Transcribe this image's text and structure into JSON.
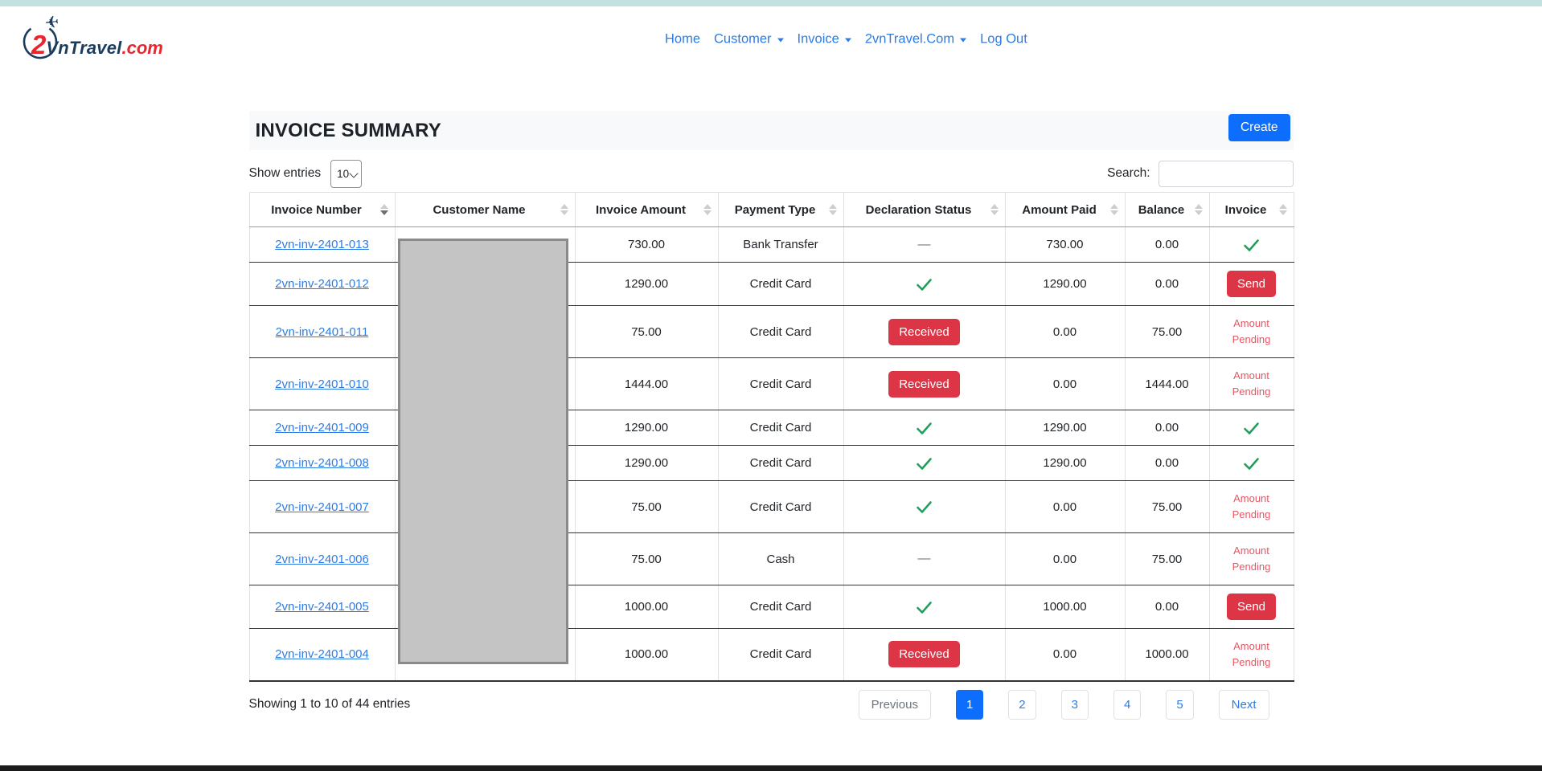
{
  "brand": {
    "digit": "2",
    "name": "VnTravel",
    "suffix": ".com"
  },
  "nav": {
    "items": [
      {
        "label": "Home",
        "has_dropdown": false
      },
      {
        "label": "Customer",
        "has_dropdown": true
      },
      {
        "label": "Invoice",
        "has_dropdown": true
      },
      {
        "label": "2vnTravel.Com",
        "has_dropdown": true
      },
      {
        "label": "Log Out",
        "has_dropdown": false
      }
    ]
  },
  "page": {
    "title": "INVOICE SUMMARY",
    "create_label": "Create"
  },
  "controls": {
    "show_entries_label": "Show entries",
    "page_size": "10",
    "search_label": "Search:",
    "search_value": ""
  },
  "table": {
    "columns": [
      {
        "label": "Invoice Number",
        "sort": "desc"
      },
      {
        "label": "Customer Name",
        "sort": "none"
      },
      {
        "label": "Invoice Amount",
        "sort": "none"
      },
      {
        "label": "Payment Type",
        "sort": "none"
      },
      {
        "label": "Declaration Status",
        "sort": "none"
      },
      {
        "label": "Amount Paid",
        "sort": "none"
      },
      {
        "label": "Balance",
        "sort": "none"
      },
      {
        "label": "Invoice",
        "sort": "none"
      }
    ],
    "labels": {
      "received": "Received",
      "send": "Send",
      "amount_pending": "Amount Pending",
      "none": "—"
    },
    "customer_name_redacted": true,
    "rows": [
      {
        "invoice_number": "2vn-inv-2401-013",
        "invoice_amount": "730.00",
        "payment_type": "Bank Transfer",
        "declaration": "dash",
        "amount_paid": "730.00",
        "balance": "0.00",
        "invoice": "check"
      },
      {
        "invoice_number": "2vn-inv-2401-012",
        "invoice_amount": "1290.00",
        "payment_type": "Credit Card",
        "declaration": "check",
        "amount_paid": "1290.00",
        "balance": "0.00",
        "invoice": "send"
      },
      {
        "invoice_number": "2vn-inv-2401-011",
        "invoice_amount": "75.00",
        "payment_type": "Credit Card",
        "declaration": "received",
        "amount_paid": "0.00",
        "balance": "75.00",
        "invoice": "pending"
      },
      {
        "invoice_number": "2vn-inv-2401-010",
        "invoice_amount": "1444.00",
        "payment_type": "Credit Card",
        "declaration": "received",
        "amount_paid": "0.00",
        "balance": "1444.00",
        "invoice": "pending"
      },
      {
        "invoice_number": "2vn-inv-2401-009",
        "invoice_amount": "1290.00",
        "payment_type": "Credit Card",
        "declaration": "check",
        "amount_paid": "1290.00",
        "balance": "0.00",
        "invoice": "check"
      },
      {
        "invoice_number": "2vn-inv-2401-008",
        "invoice_amount": "1290.00",
        "payment_type": "Credit Card",
        "declaration": "check",
        "amount_paid": "1290.00",
        "balance": "0.00",
        "invoice": "check"
      },
      {
        "invoice_number": "2vn-inv-2401-007",
        "invoice_amount": "75.00",
        "payment_type": "Credit Card",
        "declaration": "check",
        "amount_paid": "0.00",
        "balance": "75.00",
        "invoice": "pending"
      },
      {
        "invoice_number": "2vn-inv-2401-006",
        "invoice_amount": "75.00",
        "payment_type": "Cash",
        "declaration": "dash",
        "amount_paid": "0.00",
        "balance": "75.00",
        "invoice": "pending"
      },
      {
        "invoice_number": "2vn-inv-2401-005",
        "invoice_amount": "1000.00",
        "payment_type": "Credit Card",
        "declaration": "check",
        "amount_paid": "1000.00",
        "balance": "0.00",
        "invoice": "send"
      },
      {
        "invoice_number": "2vn-inv-2401-004",
        "invoice_amount": "1000.00",
        "payment_type": "Credit Card",
        "declaration": "received",
        "amount_paid": "0.00",
        "balance": "1000.00",
        "invoice": "pending"
      }
    ]
  },
  "footer": {
    "summary": "Showing 1 to 10 of 44 entries",
    "pagination": {
      "previous_label": "Previous",
      "pages": [
        "1",
        "2",
        "3",
        "4",
        "5"
      ],
      "active_page": "1",
      "next_label": "Next"
    }
  },
  "colors": {
    "accent_blue": "#0d6efd",
    "link_blue": "#2d7ce4",
    "danger_red": "#dc3545",
    "success_green": "#1e9e5a",
    "pending_red": "#e25865",
    "top_strip_teal": "#c2e2e0",
    "header_bg": "#f8f9fa",
    "redaction_gray": "#c4c4c4",
    "brand_navy": "#1c3c5e",
    "brand_red": "#e8262d"
  }
}
